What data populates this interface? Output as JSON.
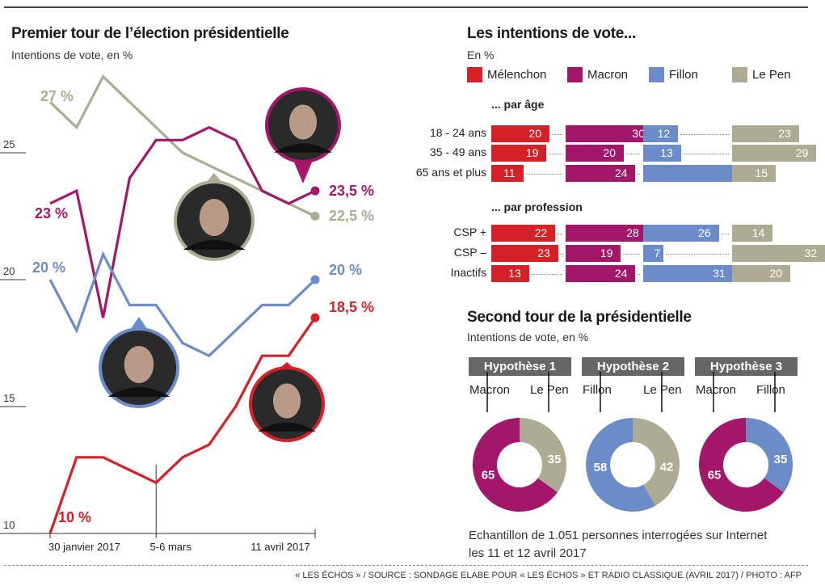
{
  "colors": {
    "melenchon": "#d42027",
    "macron": "#a3176b",
    "fillon": "#6b8cc8",
    "lepen": "#aeab93"
  },
  "left": {
    "title": "Premier tour de l’élection présidentielle",
    "subtitle": "Intentions de vote, en %"
  },
  "chart_data": [
    {
      "type": "line",
      "title": "Premier tour de l’élection présidentielle",
      "subtitle": "Intentions de vote, en %",
      "ylim": [
        10,
        28
      ],
      "yticks": [
        "25",
        "20",
        "15",
        "10"
      ],
      "ytick_values": [
        25,
        20,
        15,
        10
      ],
      "xticks": [
        {
          "label": "30 janvier 2017",
          "index": 0
        },
        {
          "label": "5-6 mars",
          "index": 4
        },
        {
          "label": "11 avril 2017",
          "index": 10
        }
      ],
      "series": [
        {
          "name": "Le Pen",
          "key": "lepen",
          "values": [
            27,
            26,
            28,
            27,
            26,
            25,
            24.5,
            24,
            23.5,
            23,
            22.5
          ],
          "start_label": "27 %",
          "end_label": "22,5 %"
        },
        {
          "name": "Macron",
          "key": "macron",
          "values": [
            23,
            23.5,
            18.5,
            24,
            25.5,
            25.5,
            26,
            25.5,
            23.5,
            23,
            23.5
          ],
          "start_label": "23 %",
          "end_label": "23,5 %"
        },
        {
          "name": "Fillon",
          "key": "fillon",
          "values": [
            20,
            18,
            21,
            19,
            19,
            17.5,
            17,
            18,
            19,
            19,
            20
          ],
          "start_label": "20 %",
          "end_label": "20 %"
        },
        {
          "name": "Mélenchon",
          "key": "melenchon",
          "values": [
            10,
            13,
            13,
            12.5,
            12,
            13,
            13.5,
            15,
            17,
            17,
            18.5
          ],
          "start_label": "10 %",
          "end_label": "18,5 %"
        }
      ]
    },
    {
      "type": "bar",
      "title": "Les intentions de vote...",
      "subtitle": "En %",
      "legend": [
        "Mélenchon",
        "Macron",
        "Fillon",
        "Le Pen"
      ],
      "groups": [
        {
          "label": "... par âge",
          "rows": [
            {
              "label": "18 - 24 ans",
              "values": [
                20,
                30,
                12,
                23
              ]
            },
            {
              "label": "35 - 49 ans",
              "values": [
                19,
                20,
                13,
                29
              ]
            },
            {
              "label": "65 ans et plus",
              "values": [
                11,
                24,
                39,
                15
              ]
            }
          ]
        },
        {
          "label": "... par profession",
          "rows": [
            {
              "label": "CSP +",
              "values": [
                22,
                28,
                26,
                14
              ]
            },
            {
              "label": "CSP –",
              "values": [
                23,
                19,
                7,
                32
              ]
            },
            {
              "label": "Inactifs",
              "values": [
                13,
                24,
                31,
                20
              ]
            }
          ]
        }
      ]
    },
    {
      "type": "pie",
      "title": "Second tour de la présidentielle",
      "subtitle": "Intentions de vote, en %",
      "hypotheses": [
        {
          "label": "Hypothèse 1",
          "left": {
            "name": "Macron",
            "key": "macron",
            "value": 65
          },
          "right": {
            "name": "Le Pen",
            "key": "lepen",
            "value": 35
          }
        },
        {
          "label": "Hypothèse 2",
          "left": {
            "name": "Fillon",
            "key": "fillon",
            "value": 58
          },
          "right": {
            "name": "Le Pen",
            "key": "lepen",
            "value": 42
          }
        },
        {
          "label": "Hypothèse 3",
          "left": {
            "name": "Macron",
            "key": "macron",
            "value": 65
          },
          "right": {
            "name": "Fillon",
            "key": "fillon",
            "value": 35
          }
        }
      ]
    }
  ],
  "note": {
    "line1": "Echantillon de 1.051 personnes interrogées sur Internet",
    "line2": "les 11 et 12 avril 2017"
  },
  "footer": "« LES ÉCHOS » / SOURCE : SONDAGE ELABE POUR « LES ÉCHOS » ET RADIO CLASSIQUE (AVRIL 2017) / PHOTO : AFP"
}
